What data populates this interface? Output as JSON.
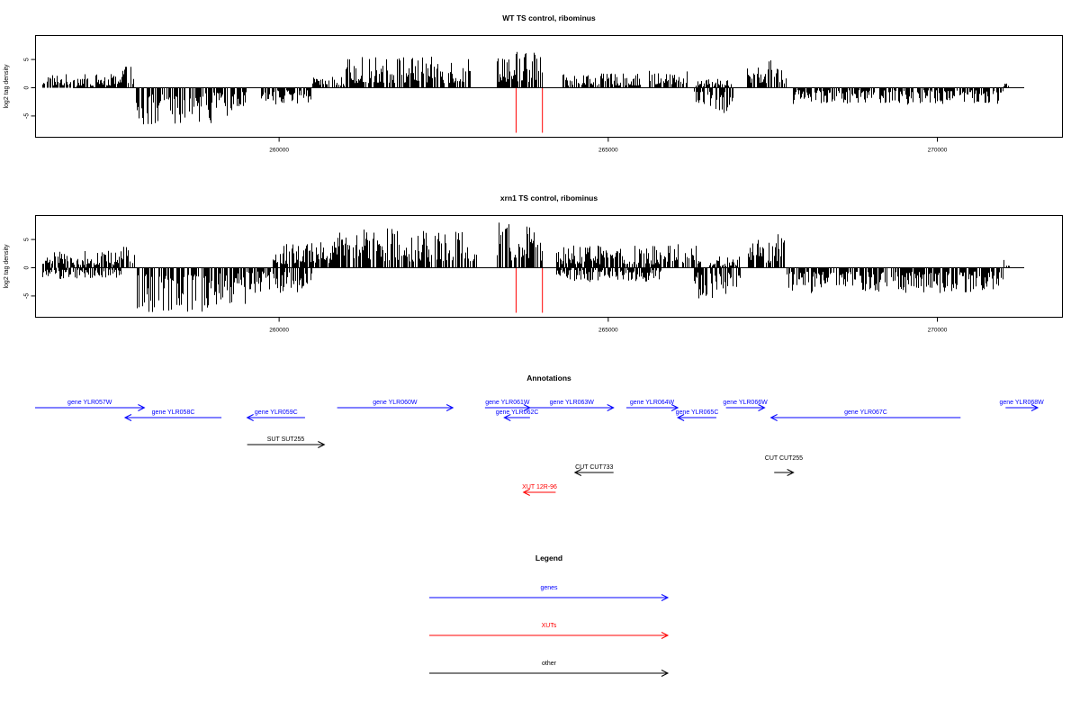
{
  "colors": {
    "genes": "#0000ff",
    "xuts": "#ff0000",
    "other": "#000000",
    "bars": "#000000"
  },
  "chart_data": [
    {
      "type": "bar",
      "title": "WT TS control, ribominus",
      "ylabel": "log2 tag density",
      "xlabel": "",
      "xlim": [
        256300,
        271900
      ],
      "ylim": [
        -9,
        9
      ],
      "yticks": [
        -5,
        0,
        5
      ],
      "xticks": [
        260000,
        265000,
        270000
      ],
      "grid": false,
      "markers": [
        263600,
        264000
      ],
      "plus_segments": [
        {
          "start": 256400,
          "end": 257600,
          "amp": 2.4
        },
        {
          "start": 257600,
          "end": 257800,
          "amp": 4.0
        },
        {
          "start": 260500,
          "end": 261000,
          "amp": 2.0
        },
        {
          "start": 261000,
          "end": 262900,
          "amp": 5.5
        },
        {
          "start": 263300,
          "end": 264000,
          "amp": 7.0
        },
        {
          "start": 264300,
          "end": 265500,
          "amp": 2.5
        },
        {
          "start": 265600,
          "end": 266200,
          "amp": 3.0
        },
        {
          "start": 266300,
          "end": 266900,
          "amp": 1.6
        },
        {
          "start": 267100,
          "end": 267700,
          "amp": 5.0
        },
        {
          "start": 271000,
          "end": 271100,
          "amp": 1.0
        }
      ],
      "minus_segments": [
        {
          "start": 257800,
          "end": 259000,
          "amp": 6.5
        },
        {
          "start": 259000,
          "end": 259500,
          "amp": 5.0
        },
        {
          "start": 259700,
          "end": 260500,
          "amp": 3.0
        },
        {
          "start": 266300,
          "end": 266900,
          "amp": 4.5
        },
        {
          "start": 267800,
          "end": 271000,
          "amp": 3.0
        }
      ]
    },
    {
      "type": "bar",
      "title": "xrn1 TS control, ribominus",
      "ylabel": "log2 tag density",
      "xlabel": "",
      "xlim": [
        256300,
        271900
      ],
      "ylim": [
        -9,
        9
      ],
      "yticks": [
        -5,
        0,
        5
      ],
      "xticks": [
        260000,
        265000,
        270000
      ],
      "grid": false,
      "markers": [
        263600,
        264000
      ],
      "plus_segments": [
        {
          "start": 256400,
          "end": 257600,
          "amp": 3.0
        },
        {
          "start": 257600,
          "end": 257800,
          "amp": 5.0
        },
        {
          "start": 259900,
          "end": 260800,
          "amp": 4.5
        },
        {
          "start": 260800,
          "end": 263000,
          "amp": 7.0
        },
        {
          "start": 263300,
          "end": 264000,
          "amp": 8.5
        },
        {
          "start": 264200,
          "end": 265800,
          "amp": 4.0
        },
        {
          "start": 265800,
          "end": 266400,
          "amp": 4.5
        },
        {
          "start": 266500,
          "end": 267000,
          "amp": 2.0
        },
        {
          "start": 267100,
          "end": 267700,
          "amp": 6.0
        },
        {
          "start": 271000,
          "end": 271100,
          "amp": 1.8
        }
      ],
      "minus_segments": [
        {
          "start": 256400,
          "end": 257600,
          "amp": 2.0
        },
        {
          "start": 257800,
          "end": 259000,
          "amp": 8.0
        },
        {
          "start": 259000,
          "end": 259500,
          "amp": 6.5
        },
        {
          "start": 259500,
          "end": 260500,
          "amp": 4.5
        },
        {
          "start": 264200,
          "end": 265800,
          "amp": 2.5
        },
        {
          "start": 266300,
          "end": 267000,
          "amp": 5.5
        },
        {
          "start": 267700,
          "end": 271000,
          "amp": 4.5
        }
      ]
    }
  ],
  "annotations": {
    "title": "Annotations",
    "items": [
      {
        "label": "gene YLR057W",
        "start": 256300,
        "end": 258000,
        "strand": "+",
        "row": 0,
        "kind": "genes"
      },
      {
        "label": "gene YLR058C",
        "start": 257700,
        "end": 259200,
        "strand": "-",
        "row": 1,
        "kind": "genes"
      },
      {
        "label": "gene YLR059C",
        "start": 259600,
        "end": 260500,
        "strand": "-",
        "row": 1,
        "kind": "genes"
      },
      {
        "label": "gene YLR060W",
        "start": 261000,
        "end": 262800,
        "strand": "+",
        "row": 0,
        "kind": "genes"
      },
      {
        "label": "gene YLR061W",
        "start": 263300,
        "end": 264000,
        "strand": "+",
        "row": 0,
        "kind": "genes"
      },
      {
        "label": "gene YLR062C",
        "start": 263600,
        "end": 264000,
        "strand": "-",
        "row": 1,
        "kind": "genes"
      },
      {
        "label": "gene YLR063W",
        "start": 264000,
        "end": 265300,
        "strand": "+",
        "row": 0,
        "kind": "genes"
      },
      {
        "label": "gene YLR064W",
        "start": 265500,
        "end": 266300,
        "strand": "+",
        "row": 0,
        "kind": "genes"
      },
      {
        "label": "gene YLR065C",
        "start": 266300,
        "end": 266900,
        "strand": "-",
        "row": 1,
        "kind": "genes"
      },
      {
        "label": "gene YLR066W",
        "start": 267050,
        "end": 267650,
        "strand": "+",
        "row": 0,
        "kind": "genes"
      },
      {
        "label": "gene YLR067C",
        "start": 267750,
        "end": 270700,
        "strand": "-",
        "row": 1,
        "kind": "genes"
      },
      {
        "label": "gene YLR068W",
        "start": 271400,
        "end": 271950,
        "strand": "+",
        "row": 0,
        "kind": "genes"
      },
      {
        "label": "SUT SUT255",
        "start": 259600,
        "end": 260800,
        "strand": "+",
        "row": 2,
        "kind": "other"
      },
      {
        "label": "CUT CUT733",
        "start": 264700,
        "end": 265300,
        "strand": "-",
        "row": 3,
        "kind": "other"
      },
      {
        "label": "CUT CUT255",
        "start": 267800,
        "end": 268100,
        "strand": "+",
        "row": 3,
        "kind": "other",
        "label_dy": -14
      },
      {
        "label": "XUT 12R-96",
        "start": 263900,
        "end": 264400,
        "strand": "-",
        "row": 4,
        "kind": "xuts"
      }
    ]
  },
  "legend": {
    "title": "Legend",
    "items": [
      {
        "label": "genes",
        "kind": "genes"
      },
      {
        "label": "XUTs",
        "kind": "xuts"
      },
      {
        "label": "other",
        "kind": "other"
      }
    ]
  }
}
